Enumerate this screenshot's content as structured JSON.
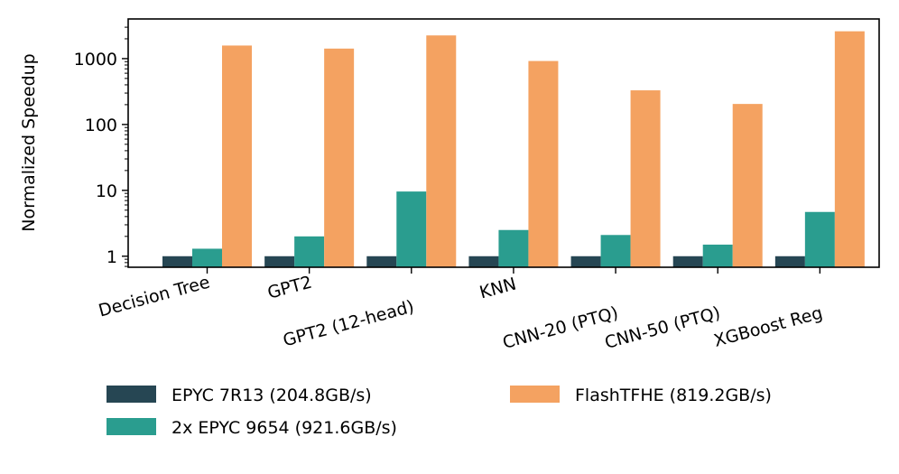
{
  "chart_data": {
    "type": "bar",
    "title": "",
    "xlabel": "",
    "ylabel": "Normalized Speedup",
    "yscale": "log",
    "ylim": [
      0.68,
      4000
    ],
    "yticks": [
      {
        "value": 1,
        "label": "1"
      },
      {
        "value": 10,
        "label": "10"
      },
      {
        "value": 100,
        "label": "100"
      },
      {
        "value": 1000,
        "label": "1000"
      }
    ],
    "grid": false,
    "legend_position": "bottom",
    "categories": [
      "Decision Tree",
      "GPT2",
      "GPT2 (12-head)",
      "KNN",
      "CNN-20 (PTQ)",
      "CNN-50 (PTQ)",
      "XGBoost Reg"
    ],
    "series": [
      {
        "name": "EPYC 7R13 (204.8GB/s)",
        "color": "#264653",
        "values": [
          1,
          1,
          1,
          1,
          1,
          1,
          1
        ]
      },
      {
        "name": "2x EPYC 9654 (921.6GB/s)",
        "color": "#2a9d8f",
        "values": [
          1.3,
          2.0,
          9.6,
          2.5,
          2.1,
          1.5,
          4.7
        ]
      },
      {
        "name": "FlashTFHE (819.2GB/s)",
        "color": "#f4a261",
        "values": [
          1580,
          1420,
          2250,
          920,
          330,
          205,
          2600
        ]
      }
    ]
  }
}
